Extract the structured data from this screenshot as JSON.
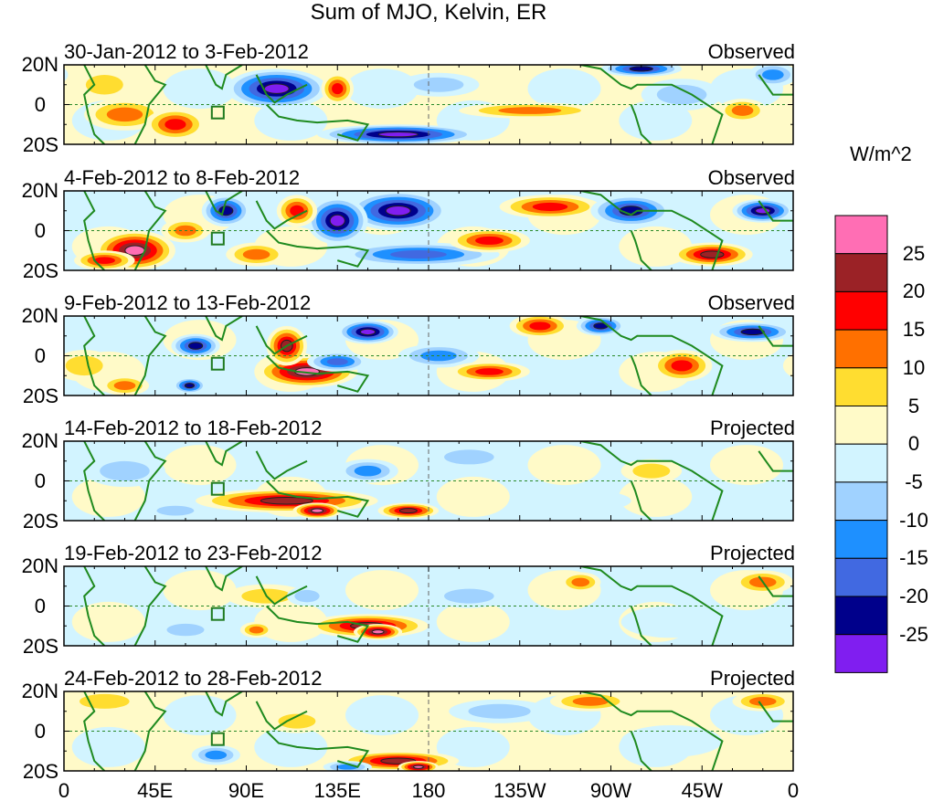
{
  "chart_data": {
    "type": "heatmap",
    "title": "Sum of MJO, Kelvin, ER",
    "units": "W/m^2",
    "x_ticks": [
      "0",
      "45E",
      "90E",
      "135E",
      "180",
      "135W",
      "90W",
      "45W",
      "0"
    ],
    "y_ticks": [
      "20N",
      "0",
      "20S"
    ],
    "xlim": [
      0,
      360
    ],
    "ylim": [
      -20,
      20
    ],
    "colorbar": {
      "levels": [
        "25",
        "20",
        "15",
        "10",
        "5",
        "0",
        "-5",
        "-10",
        "-15",
        "-20",
        "-25"
      ],
      "colors": [
        "#ff6eb4",
        "#9b2226",
        "#ff0000",
        "#ff7000",
        "#ffdd30",
        "#fffac8",
        "#d2f4ff",
        "#a0d2ff",
        "#1e90ff",
        "#4169e1",
        "#00008b",
        "#801ef0"
      ]
    },
    "panels": [
      {
        "date": "30-Jan-2012 to 3-Feb-2012",
        "type": "Observed",
        "base": 2,
        "blobs": [
          [
            105,
            8,
            25,
            10,
            -30
          ],
          [
            165,
            -15,
            40,
            5,
            -28
          ],
          [
            30,
            -5,
            20,
            8,
            15
          ],
          [
            55,
            -10,
            15,
            8,
            20
          ],
          [
            135,
            8,
            8,
            8,
            20
          ],
          [
            230,
            -3,
            35,
            4,
            12
          ],
          [
            185,
            10,
            20,
            6,
            -8
          ],
          [
            285,
            18,
            20,
            4,
            -22
          ],
          [
            335,
            -3,
            12,
            6,
            15
          ],
          [
            20,
            10,
            15,
            8,
            10
          ],
          [
            305,
            5,
            20,
            8,
            -8
          ],
          [
            350,
            15,
            12,
            6,
            -12
          ]
        ]
      },
      {
        "date": "4-Feb-2012 to 8-Feb-2012",
        "type": "Observed",
        "base": -2,
        "blobs": [
          [
            165,
            10,
            25,
            10,
            -30
          ],
          [
            135,
            5,
            15,
            12,
            -28
          ],
          [
            80,
            10,
            12,
            8,
            -25
          ],
          [
            35,
            -10,
            20,
            10,
            28
          ],
          [
            95,
            -12,
            15,
            6,
            15
          ],
          [
            115,
            10,
            10,
            8,
            20
          ],
          [
            175,
            -12,
            40,
            6,
            -20
          ],
          [
            210,
            -5,
            20,
            6,
            20
          ],
          [
            240,
            12,
            25,
            6,
            18
          ],
          [
            280,
            10,
            20,
            8,
            -25
          ],
          [
            320,
            -12,
            20,
            6,
            25
          ],
          [
            345,
            10,
            15,
            6,
            -28
          ],
          [
            60,
            0,
            12,
            6,
            12
          ],
          [
            20,
            -15,
            15,
            5,
            20
          ]
        ]
      },
      {
        "date": "9-Feb-2012 to 13-Feb-2012",
        "type": "Observed",
        "base": -2,
        "blobs": [
          [
            65,
            5,
            12,
            6,
            -25
          ],
          [
            120,
            -8,
            25,
            8,
            28
          ],
          [
            110,
            5,
            10,
            10,
            22
          ],
          [
            150,
            12,
            15,
            6,
            -28
          ],
          [
            185,
            0,
            20,
            6,
            -15
          ],
          [
            235,
            15,
            15,
            6,
            20
          ],
          [
            210,
            -8,
            20,
            5,
            18
          ],
          [
            265,
            15,
            12,
            5,
            -22
          ],
          [
            305,
            -5,
            15,
            8,
            18
          ],
          [
            340,
            12,
            20,
            5,
            -25
          ],
          [
            30,
            -15,
            12,
            5,
            15
          ],
          [
            62,
            -15,
            8,
            4,
            -25
          ],
          [
            10,
            -5,
            15,
            8,
            8
          ],
          [
            135,
            -3,
            15,
            5,
            -20
          ]
        ]
      },
      {
        "date": "14-Feb-2012 to 18-Feb-2012",
        "type": "Projected",
        "base": -3,
        "blobs": [
          [
            110,
            -10,
            45,
            6,
            25
          ],
          [
            125,
            -15,
            12,
            4,
            28
          ],
          [
            170,
            -15,
            15,
            4,
            22
          ],
          [
            150,
            5,
            15,
            6,
            -15
          ],
          [
            200,
            12,
            20,
            6,
            -8
          ],
          [
            290,
            5,
            15,
            6,
            6
          ],
          [
            30,
            5,
            20,
            8,
            -6
          ],
          [
            55,
            -15,
            15,
            4,
            -10
          ],
          [
            250,
            -10,
            30,
            6,
            -5
          ]
        ]
      },
      {
        "date": "19-Feb-2012 to 23-Feb-2012",
        "type": "Projected",
        "base": -3,
        "blobs": [
          [
            150,
            -10,
            30,
            6,
            25
          ],
          [
            155,
            -13,
            12,
            4,
            28
          ],
          [
            100,
            5,
            20,
            6,
            8
          ],
          [
            200,
            5,
            20,
            6,
            -10
          ],
          [
            255,
            12,
            10,
            5,
            12
          ],
          [
            345,
            12,
            15,
            6,
            15
          ],
          [
            60,
            -12,
            15,
            5,
            -10
          ],
          [
            95,
            -12,
            8,
            4,
            12
          ],
          [
            120,
            5,
            10,
            5,
            -8
          ],
          [
            300,
            -8,
            25,
            8,
            -5
          ]
        ]
      },
      {
        "date": "24-Feb-2012 to 28-Feb-2012",
        "type": "Projected",
        "base": 3,
        "blobs": [
          [
            165,
            -15,
            30,
            5,
            22
          ],
          [
            175,
            -18,
            10,
            3,
            28
          ],
          [
            260,
            15,
            20,
            5,
            15
          ],
          [
            345,
            15,
            15,
            5,
            15
          ],
          [
            75,
            -12,
            12,
            5,
            -15
          ],
          [
            140,
            -18,
            12,
            3,
            -15
          ],
          [
            215,
            10,
            25,
            6,
            -10
          ],
          [
            20,
            15,
            20,
            6,
            8
          ],
          [
            115,
            5,
            15,
            6,
            6
          ],
          [
            300,
            -5,
            25,
            8,
            -3
          ]
        ]
      }
    ]
  }
}
